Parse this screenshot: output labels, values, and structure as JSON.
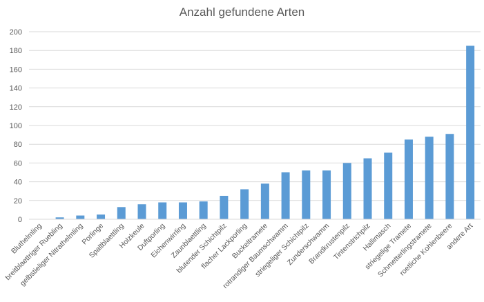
{
  "chart_data": {
    "type": "bar",
    "title": "Anzahl gefundene Arten",
    "xlabel": "",
    "ylabel": "",
    "ylim": [
      0,
      200
    ],
    "yticks": [
      0,
      20,
      40,
      60,
      80,
      100,
      120,
      140,
      160,
      180,
      200
    ],
    "grid": true,
    "bar_color": "#5b9bd5",
    "categories": [
      "Bluthelmling",
      "breitblaettriger Ruebling",
      "gelbstieliger Nitrathelmling",
      "Porlinge",
      "Spaltblaettling",
      "Holzkeule",
      "Duftporling",
      "Eichenwirrling",
      "Zaunblaettling",
      "blutender Schichtpilz",
      "flacher Lackporling",
      "Buckeltramete",
      "rotrandiger Baumschwamm",
      "striegeliger Schichtpilz",
      "Zunderschwamm",
      "Brandkrustenpilz",
      "Tintenstrichpilz",
      "Hallimasch",
      "striegelige Tramete",
      "Schmetterlingstramete",
      "roetliche Kohlenbeere",
      "andere Art"
    ],
    "values": [
      0,
      2,
      4,
      5,
      13,
      16,
      18,
      18,
      19,
      25,
      32,
      38,
      50,
      52,
      52,
      60,
      65,
      71,
      85,
      88,
      91,
      185
    ]
  }
}
